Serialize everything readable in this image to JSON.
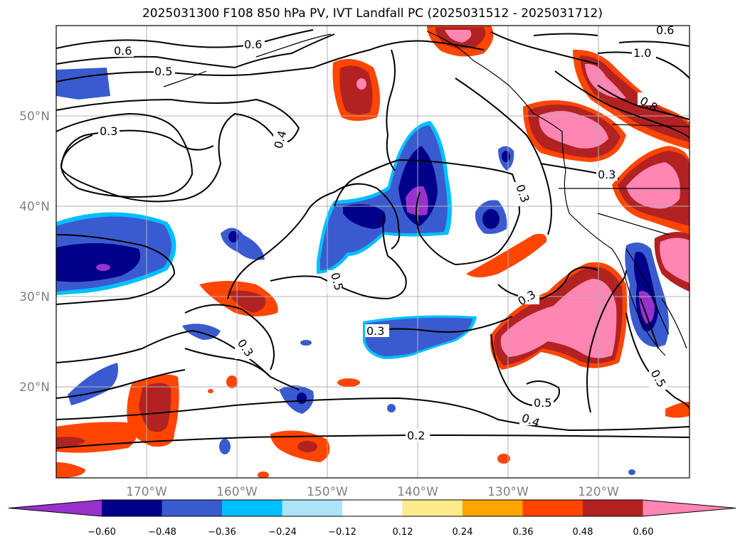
{
  "title": "2025031300 F108 850 hPa PV, IVT Landfall PC (2025031512 - 2025031712)",
  "map": {
    "lon_labels": [
      "170°W",
      "160°W",
      "150°W",
      "140°W",
      "130°W",
      "120°W"
    ],
    "lat_labels": [
      "50°N",
      "40°N",
      "30°N",
      "20°N"
    ],
    "contour_labels": [
      "0.6",
      "0.5",
      "0.6",
      "0.3",
      "0.4",
      "1.0",
      "0.8",
      "0.6",
      "0.3",
      "0.3",
      "0.3",
      "0.5",
      "0.3",
      "0.3",
      "0.5",
      "0.4",
      "0.2",
      "0.5"
    ]
  },
  "colorbar": {
    "colors": [
      "#9932CC",
      "#00008B",
      "#3A5BCF",
      "#00BFFF",
      "#ADE3F8",
      "#FFFFFF",
      "#FFEB8C",
      "#FFA500",
      "#FF4500",
      "#B22222",
      "#FF85B3"
    ],
    "tick_labels": [
      "−0.60",
      "−0.48",
      "−0.36",
      "−0.24",
      "−0.12",
      "0.12",
      "0.24",
      "0.36",
      "0.48",
      "0.60"
    ]
  }
}
